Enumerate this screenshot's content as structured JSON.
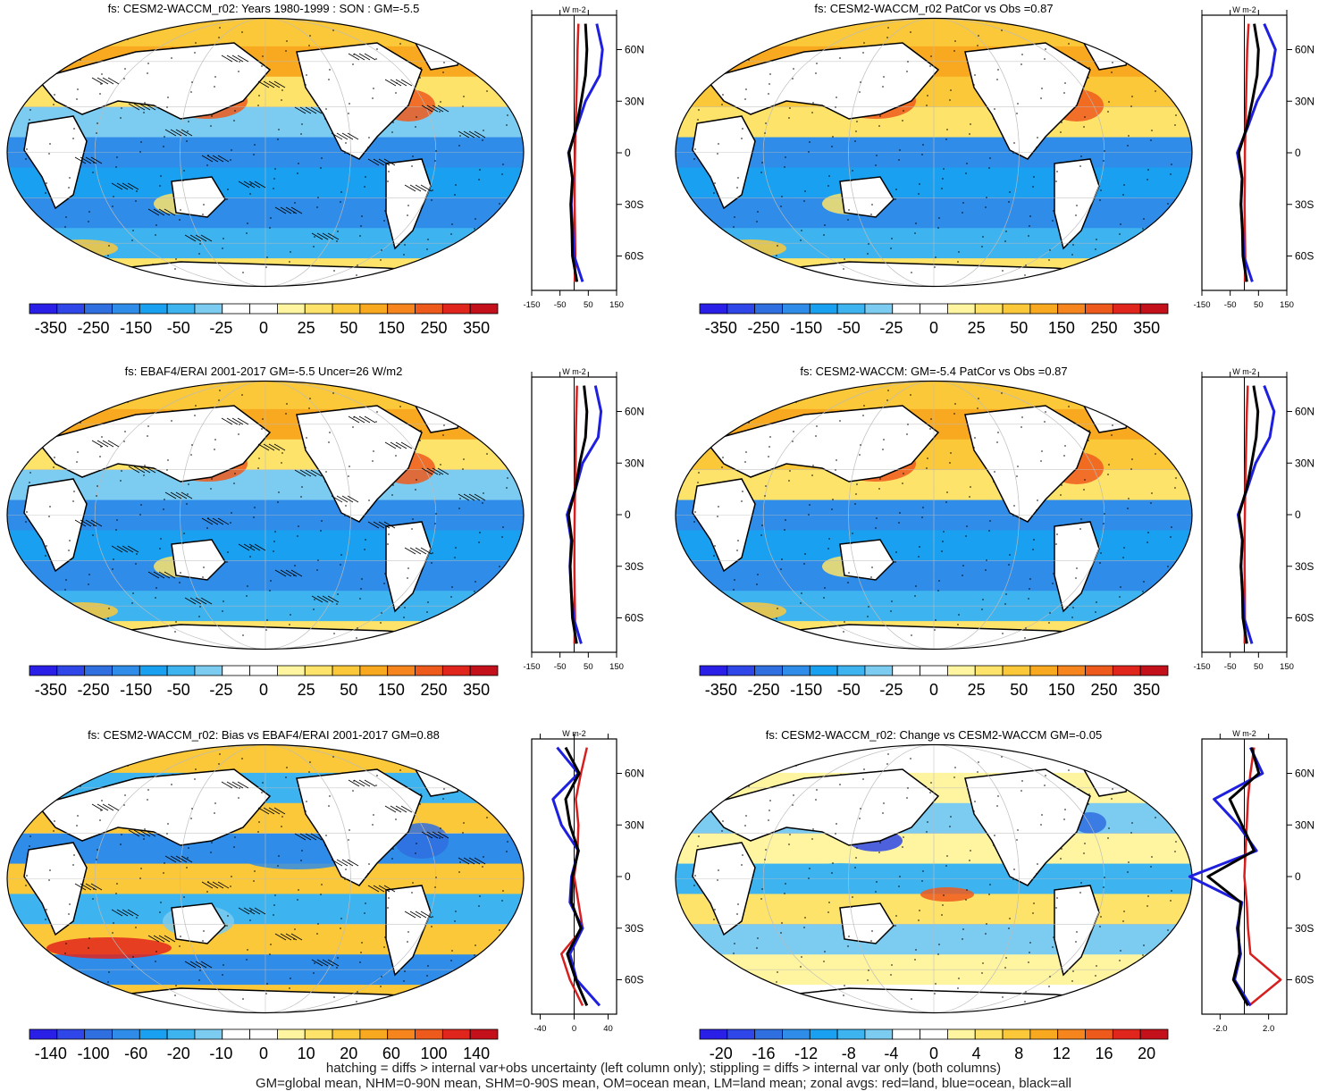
{
  "footer": {
    "line1": "hatching = diffs > internal var+obs uncertainty (left column only); stippling = diffs > internal var only (both columns)",
    "line2": "GM=global mean, NHM=0-90N mean, SHM=0-90S mean, OM=ocean mean, LM=land mean; zonal avgs: red=land, blue=ocean, black=all"
  },
  "colors": {
    "land_line": "#d62020",
    "ocean_line": "#1f1fe0",
    "all_line": "#000000",
    "palette": [
      "#2a1fe6",
      "#2f46e8",
      "#2f6fe0",
      "#2f8ce8",
      "#1aa0f0",
      "#3db4f0",
      "#7ccbf0",
      "#ffffff",
      "#ffffff",
      "#fff5a0",
      "#fde36a",
      "#fbc83a",
      "#f8a91f",
      "#f5851c",
      "#ee5a1c",
      "#e0261c",
      "#c4101a"
    ]
  },
  "chart_data": [
    {
      "type": "heatmap",
      "title": "fs: CESM2-WACCM_r02: Years 1980-1999 : SON : GM=-5.5",
      "colorbar_ticks": [
        "-350",
        "-250",
        "-150",
        "-50",
        "-25",
        "0",
        "25",
        "50",
        "150",
        "250",
        "350"
      ],
      "zonal": {
        "unit_label": "W m-2",
        "x_ticks": [
          "-150",
          "-50",
          "50",
          "150"
        ],
        "xlim": [
          -150,
          150
        ],
        "y_ticks": [
          "60N",
          "30N",
          "0",
          "30S",
          "60S"
        ],
        "ylim": [
          -80,
          80
        ],
        "lat": [
          75,
          60,
          45,
          30,
          15,
          0,
          -15,
          -30,
          -45,
          -60,
          -75
        ],
        "land": [
          15,
          12,
          10,
          8,
          5,
          3,
          2,
          2,
          3,
          4,
          2
        ],
        "ocean": [
          80,
          100,
          90,
          40,
          10,
          -20,
          -5,
          -10,
          -5,
          0,
          30
        ],
        "all": [
          40,
          45,
          40,
          25,
          8,
          -18,
          -6,
          -12,
          -8,
          -6,
          10
        ]
      }
    },
    {
      "type": "heatmap",
      "title": "fs: CESM2-WACCM_r02 PatCor vs Obs =0.87",
      "colorbar_ticks": [
        "-350",
        "-250",
        "-150",
        "-50",
        "-25",
        "0",
        "25",
        "50",
        "150",
        "250",
        "350"
      ],
      "zonal": {
        "unit_label": "W m-2",
        "x_ticks": [
          "-150",
          "-50",
          "50",
          "150"
        ],
        "xlim": [
          -150,
          150
        ],
        "y_ticks": [
          "60N",
          "30N",
          "0",
          "30S",
          "60S"
        ],
        "ylim": [
          -80,
          80
        ],
        "lat": [
          75,
          60,
          45,
          30,
          15,
          0,
          -15,
          -30,
          -45,
          -60,
          -75
        ],
        "land": [
          15,
          10,
          8,
          6,
          4,
          2,
          2,
          1,
          2,
          3,
          2
        ],
        "ocean": [
          70,
          110,
          95,
          45,
          12,
          -25,
          -8,
          -12,
          -6,
          -2,
          28
        ],
        "all": [
          35,
          50,
          45,
          28,
          9,
          -20,
          -8,
          -12,
          -7,
          -5,
          9
        ]
      }
    },
    {
      "type": "heatmap",
      "title": "fs: EBAF4/ERAI 2001-2017 GM=-5.5 Uncer=26 W/m2",
      "colorbar_ticks": [
        "-350",
        "-250",
        "-150",
        "-50",
        "-25",
        "0",
        "25",
        "50",
        "150",
        "250",
        "350"
      ],
      "zonal": {
        "unit_label": "W m-2",
        "x_ticks": [
          "-150",
          "-50",
          "50",
          "150"
        ],
        "xlim": [
          -150,
          150
        ],
        "y_ticks": [
          "60N",
          "30N",
          "0",
          "30S",
          "60S"
        ],
        "ylim": [
          -80,
          80
        ],
        "lat": [
          75,
          60,
          45,
          30,
          15,
          0,
          -15,
          -30,
          -45,
          -60,
          -75
        ],
        "land": [
          10,
          8,
          6,
          5,
          3,
          2,
          1,
          1,
          2,
          3,
          1
        ],
        "ocean": [
          75,
          95,
          85,
          30,
          5,
          -25,
          -10,
          -15,
          -10,
          -2,
          25
        ],
        "all": [
          35,
          45,
          40,
          20,
          5,
          -20,
          -8,
          -14,
          -10,
          -6,
          9
        ]
      }
    },
    {
      "type": "heatmap",
      "title": "fs: CESM2-WACCM: GM=-5.4 PatCor vs Obs =0.87",
      "colorbar_ticks": [
        "-350",
        "-250",
        "-150",
        "-50",
        "-25",
        "0",
        "25",
        "50",
        "150",
        "250",
        "350"
      ],
      "zonal": {
        "unit_label": "W m-2",
        "x_ticks": [
          "-150",
          "-50",
          "50",
          "150"
        ],
        "xlim": [
          -150,
          150
        ],
        "y_ticks": [
          "60N",
          "30N",
          "0",
          "30S",
          "60S"
        ],
        "ylim": [
          -80,
          80
        ],
        "lat": [
          75,
          60,
          45,
          30,
          15,
          0,
          -15,
          -30,
          -45,
          -60,
          -75
        ],
        "land": [
          12,
          9,
          7,
          5,
          3,
          2,
          1,
          1,
          2,
          2,
          1
        ],
        "ocean": [
          70,
          105,
          90,
          40,
          10,
          -22,
          -7,
          -12,
          -6,
          -1,
          27
        ],
        "all": [
          33,
          48,
          42,
          26,
          8,
          -19,
          -7,
          -12,
          -7,
          -5,
          9
        ]
      }
    },
    {
      "type": "heatmap",
      "title": "fs: CESM2-WACCM_r02: Bias vs EBAF4/ERAI 2001-2017  GM=0.88",
      "colorbar_ticks": [
        "-140",
        "-100",
        "-60",
        "-20",
        "-10",
        "0",
        "10",
        "20",
        "60",
        "100",
        "140"
      ],
      "zonal": {
        "unit_label": "W m-2",
        "x_ticks": [
          "-40",
          "0",
          "40"
        ],
        "xlim": [
          -50,
          50
        ],
        "y_ticks": [
          "60N",
          "30N",
          "0",
          "30S",
          "60S"
        ],
        "ylim": [
          -80,
          80
        ],
        "lat": [
          75,
          60,
          45,
          30,
          15,
          0,
          -15,
          -30,
          -45,
          -60,
          -75
        ],
        "land": [
          15,
          8,
          2,
          5,
          4,
          0,
          5,
          10,
          -15,
          -5,
          10
        ],
        "ocean": [
          -20,
          5,
          -25,
          -15,
          5,
          -3,
          -5,
          10,
          -5,
          3,
          30
        ],
        "all": [
          -10,
          6,
          -10,
          -5,
          5,
          -2,
          -3,
          8,
          -8,
          2,
          15
        ]
      }
    },
    {
      "type": "heatmap",
      "title": "fs: CESM2-WACCM_r02: Change vs CESM2-WACCM GM=-0.05",
      "colorbar_ticks": [
        "-20",
        "-16",
        "-12",
        "-8",
        "-4",
        "0",
        "4",
        "8",
        "12",
        "16",
        "20"
      ],
      "zonal": {
        "unit_label": "W m-2",
        "x_ticks": [
          "-2.0",
          "2.0"
        ],
        "xlim": [
          -3.5,
          3.5
        ],
        "y_ticks": [
          "60N",
          "30N",
          "0",
          "30S",
          "60S"
        ],
        "ylim": [
          -80,
          80
        ],
        "lat": [
          75,
          60,
          45,
          30,
          15,
          0,
          -15,
          -30,
          -45,
          -60,
          -75
        ],
        "land": [
          0.8,
          0.5,
          0.3,
          0.2,
          0.1,
          0.0,
          0.2,
          0.3,
          0.5,
          3.0,
          0.4
        ],
        "ocean": [
          0.5,
          1.5,
          -2.5,
          -0.5,
          1.0,
          -4.5,
          -0.2,
          -0.6,
          -0.3,
          -0.8,
          0.5
        ],
        "all": [
          0.6,
          1.2,
          -1.2,
          -0.2,
          0.8,
          -3.0,
          -0.3,
          -0.5,
          -0.4,
          -0.9,
          0.3
        ]
      }
    }
  ]
}
